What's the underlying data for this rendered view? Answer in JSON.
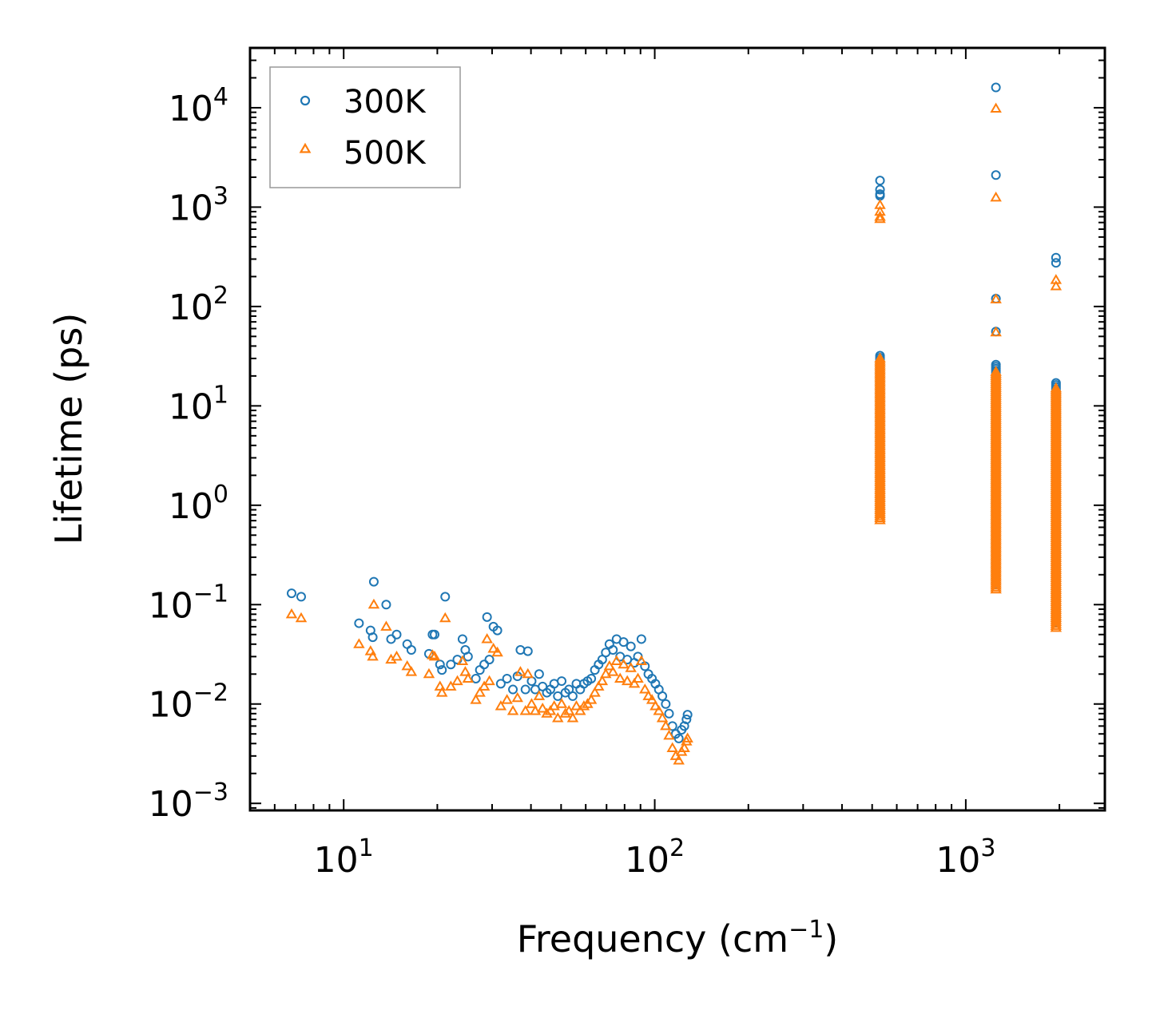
{
  "chart_data": {
    "type": "scatter",
    "xscale": "log",
    "yscale": "log",
    "xlabel": "Frequency (cm",
    "xlabel_sup": "−1",
    "xlabel_end": ")",
    "ylabel": "Lifetime (ps)",
    "xlim": [
      5,
      2800
    ],
    "ylim": [
      0.00085,
      40000
    ],
    "x_ticks": [
      {
        "value": 10,
        "base": "10",
        "exp": "1"
      },
      {
        "value": 100,
        "base": "10",
        "exp": "2"
      },
      {
        "value": 1000,
        "base": "10",
        "exp": "3"
      }
    ],
    "y_ticks": [
      {
        "value": 0.001,
        "base": "10",
        "exp": "−3"
      },
      {
        "value": 0.01,
        "base": "10",
        "exp": "−2"
      },
      {
        "value": 0.1,
        "base": "10",
        "exp": "−1"
      },
      {
        "value": 1,
        "base": "10",
        "exp": "0"
      },
      {
        "value": 10,
        "base": "10",
        "exp": "1"
      },
      {
        "value": 100,
        "base": "10",
        "exp": "2"
      },
      {
        "value": 1000,
        "base": "10",
        "exp": "3"
      },
      {
        "value": 10000,
        "base": "10",
        "exp": "4"
      }
    ],
    "legend_position": "top-left",
    "series": [
      {
        "name": "300K",
        "marker": "circle",
        "color": "#1f77b4",
        "x": [
          6.8,
          7.3,
          11.2,
          12.2,
          12.4,
          12.5,
          13.7,
          14.2,
          14.8,
          16.0,
          16.5,
          18.8,
          19.3,
          19.6,
          20.4,
          20.7,
          21.2,
          22.1,
          23.2,
          24.1,
          24.6,
          25.1,
          26.6,
          27.4,
          28.3,
          28.9,
          29.4,
          30.3,
          31.2,
          32.0,
          33.5,
          35.0,
          36.2,
          37.0,
          38.4,
          39.1,
          40.2,
          41.3,
          42.5,
          43.6,
          45.0,
          46.2,
          47.5,
          48.8,
          50.2,
          51.6,
          53.0,
          54.5,
          56.0,
          57.6,
          59.2,
          60.8,
          62.5,
          64.2,
          66.0,
          67.8,
          69.6,
          71.5,
          73.4,
          75.4,
          77.4,
          79.4,
          81.6,
          83.8,
          86.0,
          88.3,
          90.6,
          93.0,
          95.4,
          98.0,
          100.5,
          103.1,
          105.8,
          108.5,
          111.2,
          114.0,
          116.8,
          119.5,
          122.0,
          124.5,
          126.5,
          127.5
        ],
        "y": [
          0.13,
          0.12,
          0.065,
          0.055,
          0.047,
          0.17,
          0.1,
          0.045,
          0.05,
          0.04,
          0.035,
          0.032,
          0.05,
          0.05,
          0.025,
          0.022,
          0.12,
          0.025,
          0.028,
          0.045,
          0.035,
          0.03,
          0.018,
          0.022,
          0.025,
          0.075,
          0.028,
          0.06,
          0.055,
          0.016,
          0.018,
          0.014,
          0.019,
          0.035,
          0.014,
          0.034,
          0.017,
          0.014,
          0.02,
          0.015,
          0.013,
          0.014,
          0.016,
          0.012,
          0.017,
          0.013,
          0.014,
          0.012,
          0.016,
          0.014,
          0.016,
          0.017,
          0.018,
          0.022,
          0.025,
          0.028,
          0.033,
          0.04,
          0.035,
          0.045,
          0.03,
          0.042,
          0.028,
          0.038,
          0.026,
          0.03,
          0.045,
          0.024,
          0.02,
          0.018,
          0.016,
          0.014,
          0.012,
          0.01,
          0.008,
          0.006,
          0.005,
          0.0045,
          0.0055,
          0.006,
          0.007,
          0.0078
        ],
        "bands": [
          {
            "x": 530,
            "ymin": 0.8,
            "ymax": 32,
            "outliers": [
              1850,
              1500,
              1350,
              1300
            ]
          },
          {
            "x": 1250,
            "ymin": 0.16,
            "ymax": 26,
            "outliers": [
              16000,
              2100,
              120,
              56
            ]
          },
          {
            "x": 1950,
            "ymin": 0.065,
            "ymax": 17,
            "outliers": [
              310,
              275
            ]
          }
        ]
      },
      {
        "name": "500K",
        "marker": "triangle",
        "color": "#ff7f0e",
        "x": [
          6.8,
          7.3,
          11.2,
          12.2,
          12.4,
          12.5,
          13.7,
          14.2,
          14.8,
          16.0,
          16.5,
          18.8,
          19.3,
          19.6,
          20.4,
          20.7,
          21.2,
          22.1,
          23.2,
          24.1,
          24.6,
          25.1,
          26.6,
          27.4,
          28.3,
          28.9,
          29.4,
          30.3,
          31.2,
          32.0,
          33.5,
          35.0,
          36.2,
          37.0,
          38.4,
          39.1,
          40.2,
          41.3,
          42.5,
          43.6,
          45.0,
          46.2,
          47.5,
          48.8,
          50.2,
          51.6,
          53.0,
          54.5,
          56.0,
          57.6,
          59.2,
          60.8,
          62.5,
          64.2,
          66.0,
          67.8,
          69.6,
          71.5,
          73.4,
          75.4,
          77.4,
          79.4,
          81.6,
          83.8,
          86.0,
          88.3,
          90.6,
          93.0,
          95.4,
          98.0,
          100.5,
          103.1,
          105.8,
          108.5,
          111.2,
          114.0,
          116.8,
          119.5,
          122.0,
          124.5,
          126.5,
          127.5
        ],
        "y": [
          0.08,
          0.073,
          0.04,
          0.034,
          0.03,
          0.1,
          0.06,
          0.028,
          0.03,
          0.024,
          0.021,
          0.02,
          0.031,
          0.03,
          0.015,
          0.013,
          0.073,
          0.015,
          0.017,
          0.027,
          0.021,
          0.018,
          0.011,
          0.013,
          0.015,
          0.045,
          0.017,
          0.036,
          0.033,
          0.0095,
          0.011,
          0.0085,
          0.0115,
          0.021,
          0.0085,
          0.02,
          0.01,
          0.0085,
          0.012,
          0.009,
          0.008,
          0.0085,
          0.0095,
          0.0072,
          0.01,
          0.008,
          0.0085,
          0.0072,
          0.0095,
          0.0085,
          0.0095,
          0.01,
          0.011,
          0.013,
          0.015,
          0.017,
          0.02,
          0.024,
          0.021,
          0.027,
          0.018,
          0.025,
          0.017,
          0.023,
          0.016,
          0.018,
          0.027,
          0.014,
          0.012,
          0.011,
          0.0095,
          0.0085,
          0.0072,
          0.006,
          0.0048,
          0.0036,
          0.003,
          0.0027,
          0.0033,
          0.0036,
          0.0042,
          0.0045
        ],
        "bands": [
          {
            "x": 530,
            "ymin": 0.7,
            "ymax": 30,
            "outliers": [
              1050,
              900,
              800,
              760
            ]
          },
          {
            "x": 1250,
            "ymin": 0.14,
            "ymax": 22,
            "outliers": [
              9800,
              1250,
              118,
              55
            ]
          },
          {
            "x": 1950,
            "ymin": 0.058,
            "ymax": 15,
            "outliers": [
              185,
              160
            ]
          }
        ]
      }
    ]
  }
}
